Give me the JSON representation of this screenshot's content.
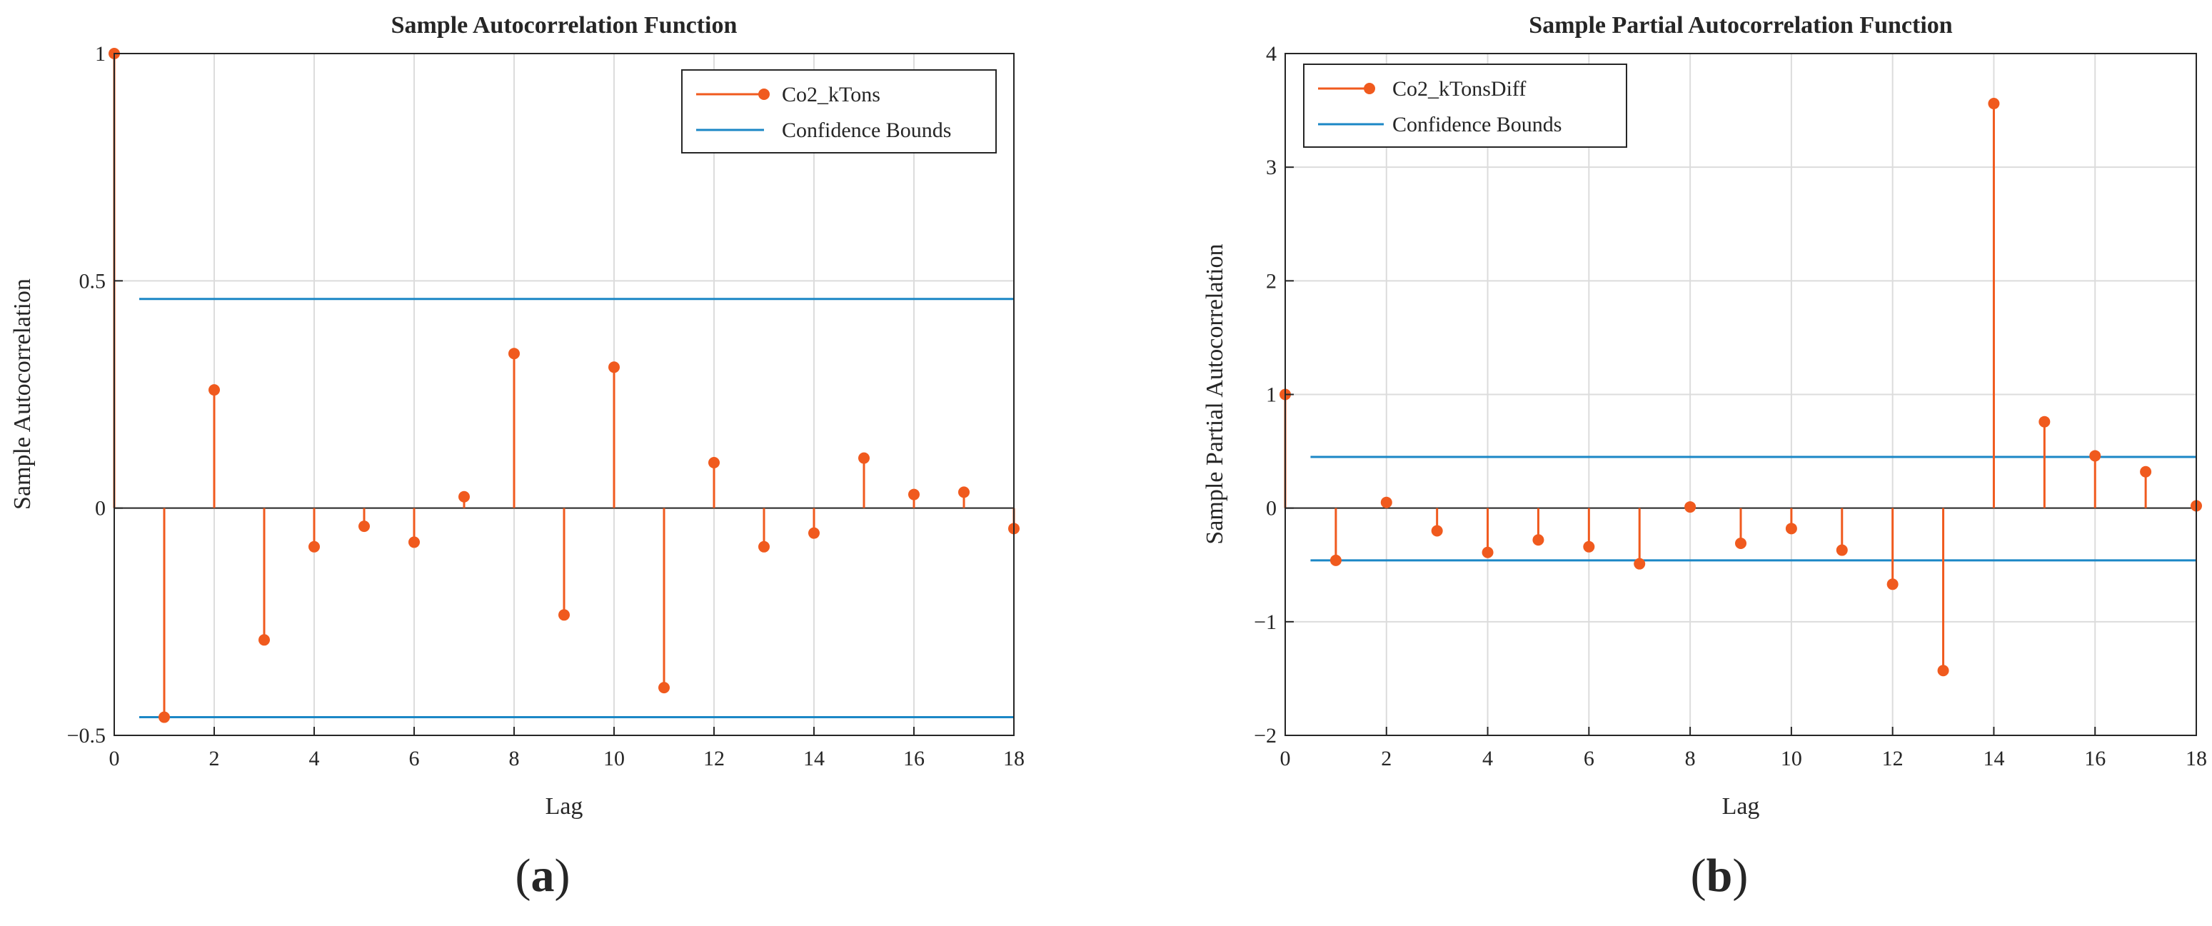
{
  "colors": {
    "stem": "#F05A1E",
    "bounds": "#1B87C6",
    "grid": "#DCDCDC",
    "axis": "#262626"
  },
  "panels": [
    {
      "label_open": "(",
      "label_letter": "a",
      "label_close": ")"
    },
    {
      "label_open": "(",
      "label_letter": "b",
      "label_close": ")"
    }
  ],
  "chart_data": [
    {
      "type": "stem",
      "title": "Sample Autocorrelation Function",
      "xlabel": "Lag",
      "ylabel": "Sample Autocorrelation",
      "xlim": [
        0,
        18
      ],
      "ylim": [
        -0.5,
        1
      ],
      "xticks": [
        0,
        2,
        4,
        6,
        8,
        10,
        12,
        14,
        16,
        18
      ],
      "yticks": [
        -0.5,
        0,
        0.5,
        1
      ],
      "ytick_labels": [
        "−0.5",
        "0",
        "0.5",
        "1"
      ],
      "grid": true,
      "legend_position": "top-right",
      "series": [
        {
          "name": "Co2_kTons",
          "lags": [
            0,
            1,
            2,
            3,
            4,
            5,
            6,
            7,
            8,
            9,
            10,
            11,
            12,
            13,
            14,
            15,
            16,
            17,
            18
          ],
          "values": [
            1.0,
            -0.46,
            0.26,
            -0.29,
            -0.085,
            -0.04,
            -0.075,
            0.025,
            0.34,
            -0.235,
            0.31,
            -0.395,
            0.1,
            -0.085,
            -0.055,
            0.11,
            0.03,
            0.035,
            -0.045
          ]
        }
      ],
      "confidence_bounds": {
        "name": "Confidence Bounds",
        "upper": 0.46,
        "lower": -0.46,
        "x_range": [
          0.5,
          18
        ]
      }
    },
    {
      "type": "stem",
      "title": "Sample Partial Autocorrelation Function",
      "xlabel": "Lag",
      "ylabel": "Sample Partial Autocorrelation",
      "xlim": [
        0,
        18
      ],
      "ylim": [
        -2,
        4
      ],
      "xticks": [
        0,
        2,
        4,
        6,
        8,
        10,
        12,
        14,
        16,
        18
      ],
      "yticks": [
        -2,
        -1,
        0,
        1,
        2,
        3,
        4
      ],
      "ytick_labels": [
        "−2",
        "−1",
        "0",
        "1",
        "2",
        "3",
        "4"
      ],
      "grid": true,
      "legend_position": "top-left",
      "series": [
        {
          "name": "Co2_kTonsDiff",
          "lags": [
            0,
            1,
            2,
            3,
            4,
            5,
            6,
            7,
            8,
            9,
            10,
            11,
            12,
            13,
            14,
            15,
            16,
            17,
            18
          ],
          "values": [
            1.0,
            -0.46,
            0.05,
            -0.2,
            -0.39,
            -0.28,
            -0.34,
            -0.49,
            0.01,
            -0.31,
            -0.18,
            -0.37,
            -0.67,
            -1.43,
            3.56,
            0.76,
            0.46,
            0.32,
            0.02
          ]
        }
      ],
      "confidence_bounds": {
        "name": "Confidence Bounds",
        "upper": 0.45,
        "lower": -0.46,
        "x_range": [
          0.5,
          18
        ]
      }
    }
  ]
}
